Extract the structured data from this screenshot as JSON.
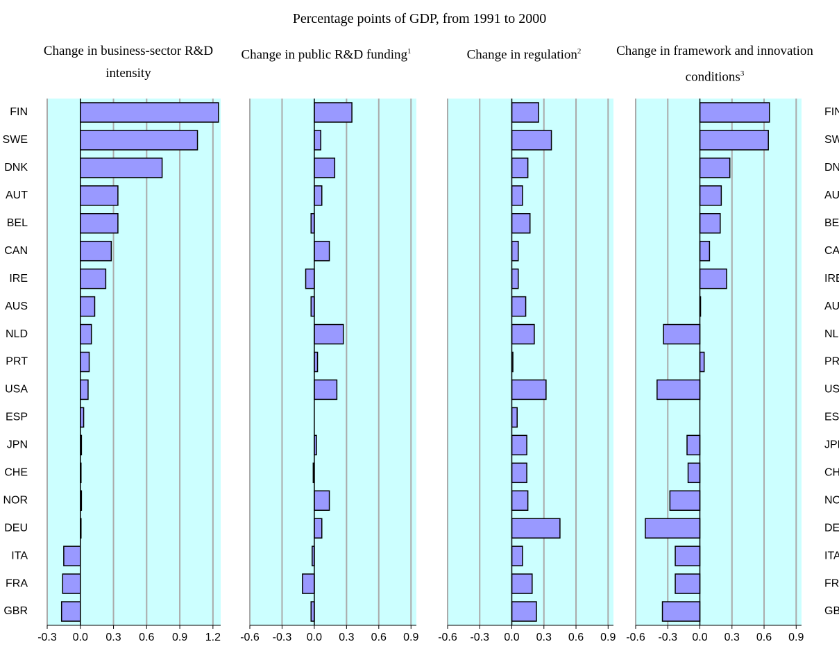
{
  "title": "Percentage points of GDP, from 1991 to 2000",
  "chart_data": [
    {
      "type": "hbar",
      "title": "Change in business-sector R&D intensity",
      "color": "#9999ff",
      "grid": true,
      "categories": [
        "FIN",
        "SWE",
        "DNK",
        "AUT",
        "BEL",
        "CAN",
        "IRE",
        "AUS",
        "NLD",
        "PRT",
        "USA",
        "ESP",
        "JPN",
        "CHE",
        "NOR",
        "DEU",
        "ITA",
        "FRA",
        "GBR"
      ],
      "values": [
        1.25,
        1.06,
        0.74,
        0.34,
        0.34,
        0.28,
        0.23,
        0.13,
        0.1,
        0.08,
        0.07,
        0.03,
        0.01,
        0.005,
        0.01,
        0.005,
        -0.15,
        -0.16,
        -0.17
      ],
      "xlim": [
        -0.3,
        1.27
      ],
      "xticks": [
        -0.3,
        {
          "value": 0,
          "label": "0.0"
        },
        0.3,
        0.6,
        0.9,
        1.2
      ]
    },
    {
      "type": "hbar",
      "title": "Change in public R&D funding",
      "title_note": "1",
      "color": "#9999ff",
      "grid": true,
      "values": [
        0.35,
        0.06,
        0.19,
        0.07,
        -0.03,
        0.14,
        -0.08,
        -0.03,
        0.27,
        0.03,
        0.21,
        null,
        0.02,
        -0.01,
        0.14,
        0.07,
        -0.02,
        -0.11,
        -0.03
      ],
      "xlim": [
        -0.6,
        0.95
      ],
      "xticks": [
        -0.6,
        -0.3,
        {
          "value": 0,
          "label": "0.0"
        },
        0.3,
        0.6,
        0.9
      ]
    },
    {
      "type": "hbar",
      "title": "Change in regulation",
      "title_note": "2",
      "color": "#9999ff",
      "grid": true,
      "values": [
        0.25,
        0.37,
        0.15,
        0.1,
        0.17,
        0.06,
        0.06,
        0.13,
        0.21,
        0.01,
        0.32,
        0.05,
        0.14,
        0.14,
        0.15,
        0.45,
        0.1,
        0.19,
        0.23
      ],
      "xlim": [
        -0.6,
        0.95
      ],
      "xticks": [
        -0.6,
        -0.3,
        {
          "value": 0,
          "label": "0.0"
        },
        0.3,
        0.6,
        0.9
      ]
    },
    {
      "type": "hbar",
      "title": "Change in framework and innovation conditions",
      "title_note": "3",
      "color": "#9999ff",
      "grid": true,
      "categories": [
        "FIN",
        "SWE",
        "DNK",
        "AUT",
        "BEL",
        "CAN",
        "IRE",
        "AUS",
        "NLD",
        "PRT",
        "USA",
        "ESP",
        "JPN",
        "CHE",
        "NOR",
        "DEU",
        "ITA",
        "FRA",
        "GBR"
      ],
      "values": [
        0.65,
        0.64,
        0.28,
        0.2,
        0.19,
        0.09,
        0.25,
        0.005,
        -0.34,
        0.04,
        -0.4,
        null,
        -0.12,
        -0.11,
        -0.28,
        -0.51,
        -0.23,
        -0.23,
        -0.35
      ],
      "xlim": [
        -0.6,
        0.95
      ],
      "xticks": [
        -0.6,
        -0.3,
        {
          "value": 0,
          "label": "0.0"
        },
        0.3,
        0.6,
        0.9
      ]
    }
  ]
}
